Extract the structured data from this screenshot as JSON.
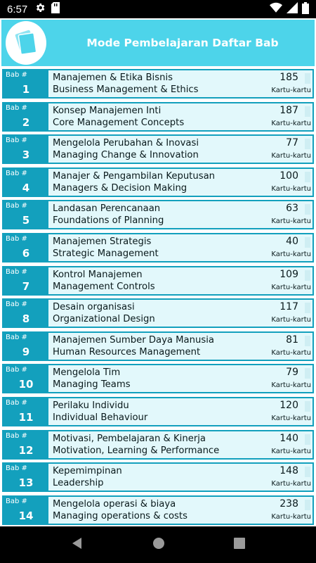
{
  "status_bar": {
    "time": "6:57",
    "left_icons": [
      "gear-icon",
      "sd-card-icon"
    ],
    "right_icons": [
      "wifi-icon",
      "signal-icon",
      "battery-icon"
    ]
  },
  "header": {
    "title": "Mode Pembelajaran Daftar Bab",
    "logo_icon": "flashcards-logo-icon"
  },
  "colors": {
    "header_bg": "#4dd4ea",
    "row_accent": "#13a0bd",
    "row_bg": "#e2f8fb"
  },
  "chapter_label": "Bab #",
  "count_label": "Kartu-kartu",
  "chapters": [
    {
      "number": "1",
      "title_id": "Manajemen & Etika Bisnis",
      "title_en": "Business Management & Ethics",
      "count": "185"
    },
    {
      "number": "2",
      "title_id": "Konsep Manajemen Inti",
      "title_en": "Core Management Concepts",
      "count": "187"
    },
    {
      "number": "3",
      "title_id": "Mengelola Perubahan & Inovasi",
      "title_en": "Managing Change & Innovation",
      "count": "77"
    },
    {
      "number": "4",
      "title_id": "Manajer & Pengambilan Keputusan",
      "title_en": "Managers & Decision Making",
      "count": "100"
    },
    {
      "number": "5",
      "title_id": "Landasan Perencanaan",
      "title_en": "Foundations of Planning",
      "count": "63"
    },
    {
      "number": "6",
      "title_id": "Manajemen Strategis",
      "title_en": "Strategic Management",
      "count": "40"
    },
    {
      "number": "7",
      "title_id": "Kontrol Manajemen",
      "title_en": "Management Controls",
      "count": "109"
    },
    {
      "number": "8",
      "title_id": "Desain organisasi",
      "title_en": "Organizational Design",
      "count": "117"
    },
    {
      "number": "9",
      "title_id": "Manajemen Sumber Daya Manusia",
      "title_en": "Human Resources Management",
      "count": "81"
    },
    {
      "number": "10",
      "title_id": "Mengelola Tim",
      "title_en": "Managing Teams",
      "count": "79"
    },
    {
      "number": "11",
      "title_id": "Perilaku Individu",
      "title_en": "Individual Behaviour",
      "count": "120"
    },
    {
      "number": "12",
      "title_id": "Motivasi, Pembelajaran & Kinerja",
      "title_en": "Motivation, Learning & Performance",
      "count": "140"
    },
    {
      "number": "13",
      "title_id": "Kepemimpinan",
      "title_en": "Leadership",
      "count": "148"
    },
    {
      "number": "14",
      "title_id": "Mengelola operasi & biaya",
      "title_en": "Managing operations & costs",
      "count": "238"
    }
  ],
  "nav_bar": {
    "icons": [
      "back-icon",
      "home-icon",
      "recents-icon"
    ]
  }
}
